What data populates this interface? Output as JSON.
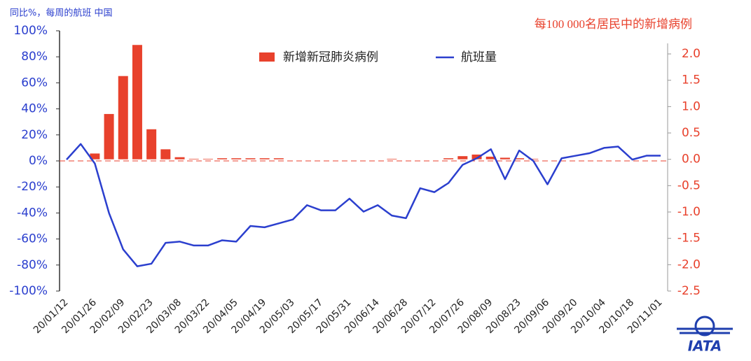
{
  "chart_data": {
    "type": "bar-line",
    "y_label": "同比%，每周的航班 中国",
    "y2_label": "每100 000名居民中的新增病例",
    "logo": "IATA",
    "categories": [
      "20/01/12",
      null,
      "20/01/26",
      null,
      "20/02/09",
      null,
      "20/02/23",
      null,
      "20/03/08",
      null,
      "20/03/22",
      null,
      "20/04/05",
      null,
      "20/04/19",
      null,
      "20/05/03",
      null,
      "20/05/17",
      null,
      "20/05/31",
      null,
      "20/06/14",
      null,
      "20/06/28",
      null,
      "20/07/12",
      null,
      "20/07/26",
      null,
      "20/08/09",
      null,
      "20/08/23",
      null,
      "20/09/06",
      null,
      "20/09/20",
      null,
      "20/10/04",
      null,
      "20/10/18",
      null,
      "20/11/01"
    ],
    "series": [
      {
        "name": "新增新冠肺炎病例",
        "type": "bar",
        "axis": "y2",
        "color": "#e8412c",
        "values": [
          0,
          0,
          0.11,
          0.86,
          1.58,
          2.17,
          0.57,
          0.19,
          0.04,
          0.01,
          0.01,
          0.02,
          0.02,
          0.02,
          0.02,
          0.02,
          0,
          0,
          0,
          0,
          0,
          0,
          0,
          0.01,
          0,
          0,
          0,
          0.02,
          0.06,
          0.09,
          0.05,
          0.03,
          0.02,
          0.01,
          0,
          0,
          0,
          0,
          0,
          0,
          0,
          0,
          0
        ]
      },
      {
        "name": "航班量",
        "type": "line",
        "axis": "y",
        "color": "#2b3fce",
        "values": [
          1,
          13,
          -2,
          -40,
          -68,
          -81,
          -79,
          -63,
          -62,
          -65,
          -65,
          -61,
          -62,
          -50,
          -51,
          -48,
          -45,
          -34,
          -38,
          -38,
          -29,
          -39,
          -34,
          -42,
          -44,
          -21,
          -24,
          -17,
          -3,
          2,
          9,
          -14,
          8,
          0,
          -18,
          2,
          4,
          6,
          10,
          11,
          1,
          4,
          4
        ]
      }
    ],
    "ylim": [
      -100,
      100
    ],
    "yticks": [
      {
        "value": -100,
        "label": "-100%"
      },
      {
        "value": -80,
        "label": "-80%"
      },
      {
        "value": -60,
        "label": "-60%"
      },
      {
        "value": -40,
        "label": "-40%"
      },
      {
        "value": -20,
        "label": "-20%"
      },
      {
        "value": 0,
        "label": "0%"
      },
      {
        "value": 20,
        "label": "20%"
      },
      {
        "value": 40,
        "label": "40%"
      },
      {
        "value": 60,
        "label": "60%"
      },
      {
        "value": 80,
        "label": "80%"
      },
      {
        "value": 100,
        "label": "100%"
      }
    ],
    "y2lim": [
      -2.5,
      2.2
    ],
    "y2ticks": [
      -2.5,
      {
        "value": -2,
        "label": "-2.0"
      },
      -1.5,
      {
        "value": -1,
        "label": "-1.0"
      },
      -0.5,
      {
        "value": 0,
        "label": "0.0"
      },
      0.5,
      {
        "value": 1,
        "label": "1.0"
      },
      1.5,
      {
        "value": 2,
        "label": "2.0"
      }
    ]
  }
}
